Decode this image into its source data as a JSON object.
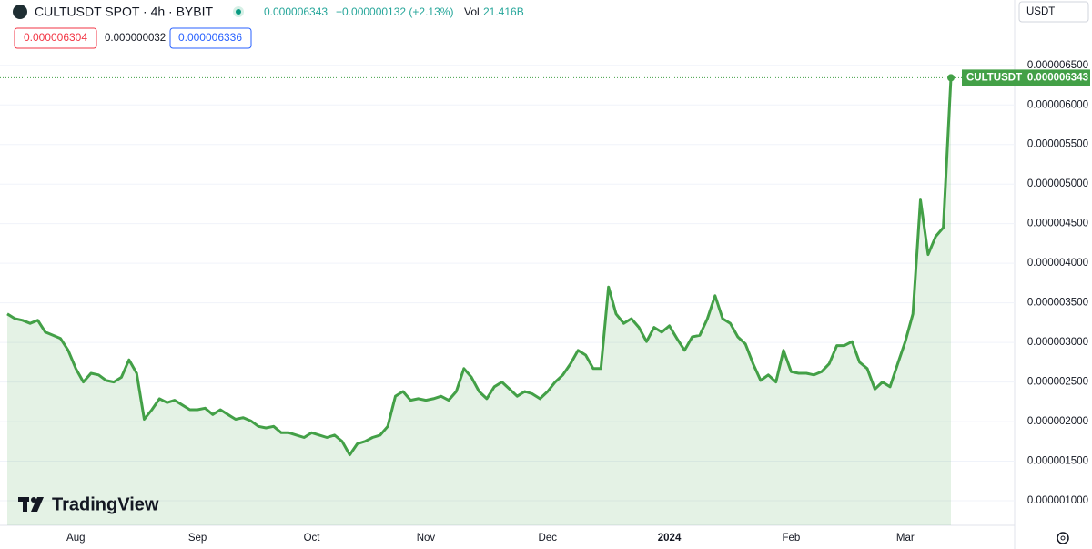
{
  "header": {
    "symbol": "CULTUSDT SPOT · 4h · BYBIT",
    "change": "+0.000000132 (+2.13%)",
    "volume_label": "Vol",
    "volume": "21.416B",
    "bid": "0.000006304",
    "spread": "0.000000032",
    "ask": "0.000006336",
    "currency": "USDT",
    "watermark": "TradingView"
  },
  "chart_data": {
    "type": "area",
    "grid": true,
    "categories": [
      null,
      null,
      null,
      null,
      null,
      null,
      null,
      null,
      null,
      "Aug",
      null,
      null,
      null,
      null,
      null,
      null,
      null,
      null,
      null,
      null,
      null,
      null,
      null,
      null,
      null,
      "Sep",
      null,
      null,
      null,
      null,
      null,
      null,
      null,
      null,
      null,
      null,
      null,
      null,
      null,
      null,
      "Oct",
      null,
      null,
      null,
      null,
      null,
      null,
      null,
      null,
      null,
      null,
      null,
      null,
      null,
      null,
      "Nov",
      null,
      null,
      null,
      null,
      null,
      null,
      null,
      null,
      null,
      null,
      null,
      null,
      null,
      null,
      null,
      "Dec",
      null,
      null,
      null,
      null,
      null,
      null,
      null,
      null,
      null,
      null,
      null,
      null,
      null,
      null,
      null,
      "2024",
      null,
      null,
      null,
      null,
      null,
      null,
      null,
      null,
      null,
      null,
      null,
      null,
      null,
      null,
      null,
      "Feb",
      null,
      null,
      null,
      null,
      null,
      null,
      null,
      null,
      null,
      null,
      null,
      null,
      null,
      null,
      "Mar",
      null,
      null,
      null,
      null,
      null,
      null
    ],
    "series": [
      {
        "name": "CULTUSDT",
        "color": "#43a047",
        "values": [
          3.36e-06,
          3.3e-06,
          3.28e-06,
          3.24e-06,
          3.28e-06,
          3.13e-06,
          3.09e-06,
          3.05e-06,
          2.9e-06,
          2.67e-06,
          2.5e-06,
          2.61e-06,
          2.59e-06,
          2.52e-06,
          2.5e-06,
          2.56e-06,
          2.78e-06,
          2.61e-06,
          2.03e-06,
          2.15e-06,
          2.29e-06,
          2.24e-06,
          2.27e-06,
          2.21e-06,
          2.15e-06,
          2.15e-06,
          2.17e-06,
          2.09e-06,
          2.15e-06,
          2.09e-06,
          2.03e-06,
          2.05e-06,
          2.01e-06,
          1.94e-06,
          1.92e-06,
          1.94e-06,
          1.86e-06,
          1.86e-06,
          1.83e-06,
          1.8e-06,
          1.86e-06,
          1.83e-06,
          1.8e-06,
          1.83e-06,
          1.75e-06,
          1.58e-06,
          1.72e-06,
          1.75e-06,
          1.8e-06,
          1.83e-06,
          1.94e-06,
          2.32e-06,
          2.38e-06,
          2.27e-06,
          2.29e-06,
          2.27e-06,
          2.29e-06,
          2.32e-06,
          2.27e-06,
          2.38e-06,
          2.67e-06,
          2.56e-06,
          2.38e-06,
          2.29e-06,
          2.44e-06,
          2.5e-06,
          2.41e-06,
          2.32e-06,
          2.38e-06,
          2.35e-06,
          2.29e-06,
          2.38e-06,
          2.5e-06,
          2.59e-06,
          2.73e-06,
          2.9e-06,
          2.84e-06,
          2.67e-06,
          2.67e-06,
          3.7e-06,
          3.36e-06,
          3.24e-06,
          3.3e-06,
          3.19e-06,
          3.01e-06,
          3.19e-06,
          3.13e-06,
          3.21e-06,
          3.05e-06,
          2.9e-06,
          3.07e-06,
          3.09e-06,
          3.3e-06,
          3.59e-06,
          3.3e-06,
          3.24e-06,
          3.07e-06,
          2.98e-06,
          2.73e-06,
          2.52e-06,
          2.59e-06,
          2.5e-06,
          2.9e-06,
          2.63e-06,
          2.61e-06,
          2.61e-06,
          2.59e-06,
          2.63e-06,
          2.73e-06,
          2.96e-06,
          2.96e-06,
          3.01e-06,
          2.75e-06,
          2.67e-06,
          2.41e-06,
          2.5e-06,
          2.44e-06,
          2.73e-06,
          3.01e-06,
          3.36e-06,
          4.8e-06,
          4.11e-06,
          4.34e-06,
          4.45e-06,
          6.343e-06
        ]
      }
    ],
    "ylim": [
      6.9e-07,
      6.98e-06
    ],
    "yticks": [
      {
        "value": 1e-06,
        "label": "0.000001000"
      },
      {
        "value": 1.5e-06,
        "label": "0.000001500"
      },
      {
        "value": 2e-06,
        "label": "0.000002000"
      },
      {
        "value": 2.5e-06,
        "label": "0.000002500"
      },
      {
        "value": 3e-06,
        "label": "0.000003000"
      },
      {
        "value": 3.5e-06,
        "label": "0.000003500"
      },
      {
        "value": 4e-06,
        "label": "0.000004000"
      },
      {
        "value": 4.5e-06,
        "label": "0.000004500"
      },
      {
        "value": 5e-06,
        "label": "0.000005000"
      },
      {
        "value": 5.5e-06,
        "label": "0.000005500"
      },
      {
        "value": 6e-06,
        "label": "0.000006000"
      },
      {
        "value": 6.5e-06,
        "label": "0.000006500"
      }
    ]
  }
}
